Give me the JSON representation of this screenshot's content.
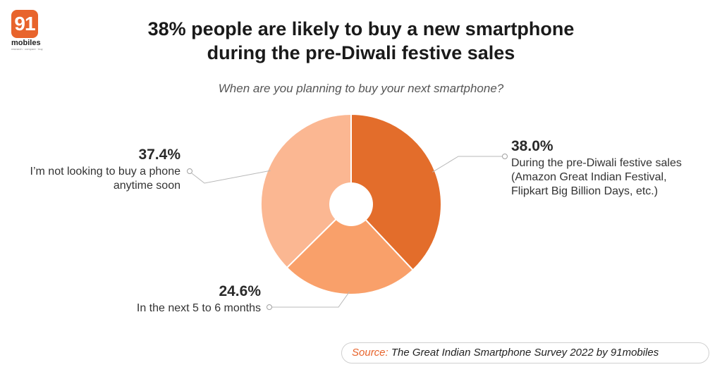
{
  "logo": {
    "number": "91",
    "word": "mobiles",
    "tagline": "research · compare · buy"
  },
  "title_line1": "38% people are likely to buy a new smartphone",
  "title_line2": "during the pre-Diwali festive sales",
  "subtitle": "When are you planning to buy your next smartphone?",
  "source": {
    "label": "Source:",
    "text": "The Great Indian Smartphone Survey 2022 by 91mobiles"
  },
  "chart_data": {
    "type": "pie",
    "title": "38% people are likely to buy a new smartphone during the pre-Diwali festive sales",
    "subtitle": "When are you planning to buy your next smartphone?",
    "donut": true,
    "labels": [
      "During the pre-Diwali festive sales (Amazon Great Indian Festival, Flipkart Big Billion Days, etc.)",
      "In the next 5 to 6 months",
      "I’m not looking to buy a phone anytime soon"
    ],
    "values": [
      38.0,
      24.6,
      37.4
    ],
    "value_labels": [
      "38.0%",
      "24.6%",
      "37.4%"
    ],
    "colors": [
      "#e36d2b",
      "#f9a06a",
      "#fbb792"
    ]
  }
}
